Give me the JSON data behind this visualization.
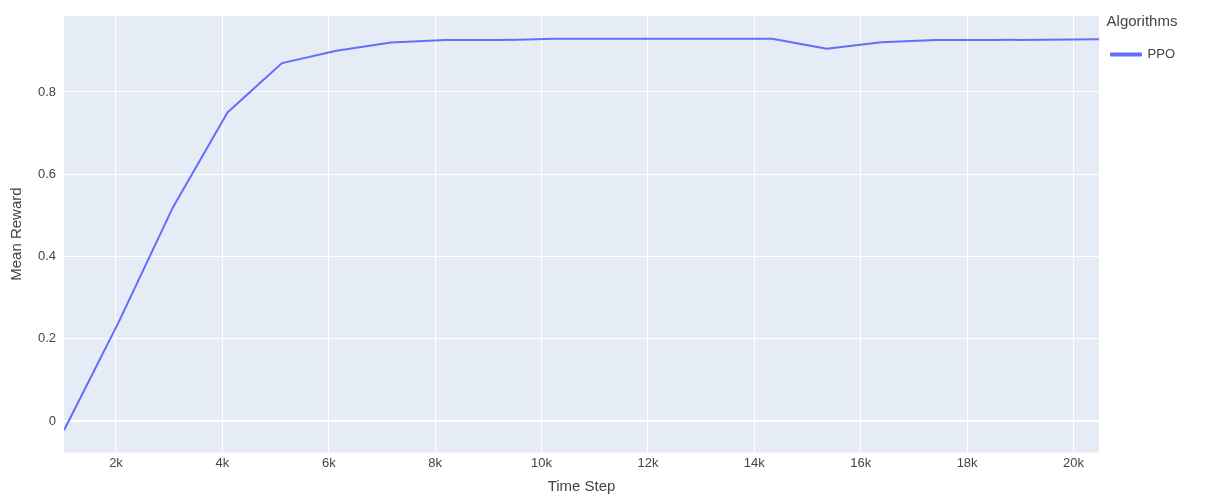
{
  "chart_data": {
    "type": "line",
    "xlabel": "Time Step",
    "ylabel": "Mean Reward",
    "legend_title": "Algorithms",
    "x": [
      1024,
      2048,
      3072,
      4096,
      5120,
      6144,
      7168,
      8192,
      9216,
      10240,
      11264,
      12288,
      13312,
      14336,
      15360,
      16384,
      17408,
      18432,
      19456,
      20480
    ],
    "series": [
      {
        "name": "PPO",
        "color": "#636efa",
        "values": [
          -0.022,
          0.24,
          0.52,
          0.75,
          0.87,
          0.9,
          0.92,
          0.926,
          0.926,
          0.929,
          0.929,
          0.929,
          0.929,
          0.929,
          0.905,
          0.921,
          0.926,
          0.926,
          0.927,
          0.928
        ]
      }
    ],
    "xlim": [
      1024,
      20480
    ],
    "xticks": [
      {
        "value": 2000,
        "label": "2k"
      },
      {
        "value": 4000,
        "label": "4k"
      },
      {
        "value": 6000,
        "label": "6k"
      },
      {
        "value": 8000,
        "label": "8k"
      },
      {
        "value": 10000,
        "label": "10k"
      },
      {
        "value": 12000,
        "label": "12k"
      },
      {
        "value": 14000,
        "label": "14k"
      },
      {
        "value": 16000,
        "label": "16k"
      },
      {
        "value": 18000,
        "label": "18k"
      },
      {
        "value": 20000,
        "label": "20k"
      }
    ],
    "ylim": [
      -0.076,
      0.985
    ],
    "yticks": [
      0,
      0.2,
      0.4,
      0.6,
      0.8
    ],
    "grid": true,
    "legend": "top right",
    "marker": "none",
    "line_style": "solid"
  }
}
